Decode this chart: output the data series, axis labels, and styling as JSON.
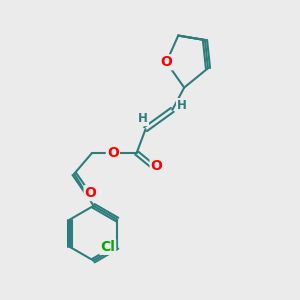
{
  "bg_color": "#ebebeb",
  "bond_color": "#2d7d7d",
  "bond_width": 1.5,
  "atom_colors": {
    "O": "#ff0000",
    "Cl": "#00aa00",
    "H": "#2d7d7d",
    "C": "#2d7d7d"
  },
  "font_size_atom": 10,
  "font_size_H": 8.5
}
